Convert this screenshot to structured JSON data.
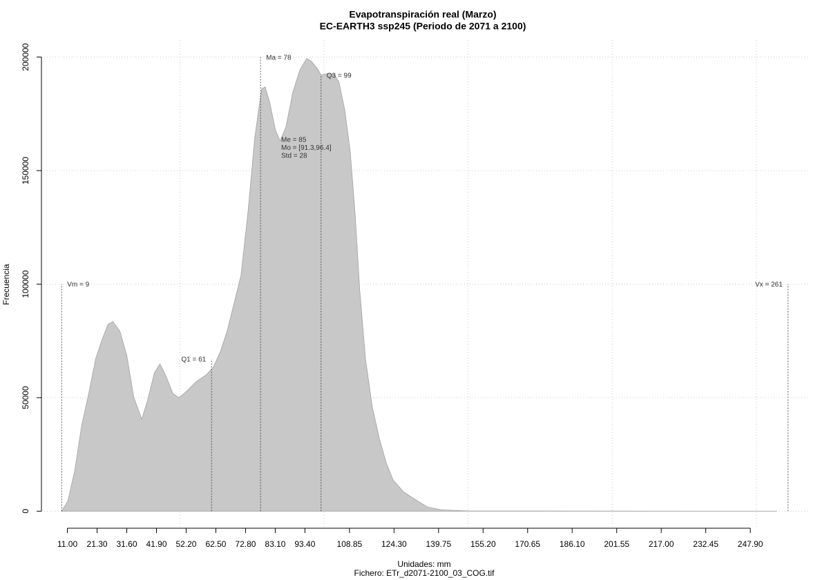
{
  "chart_data": {
    "type": "area",
    "title": "Evapotranspiración real (Marzo)",
    "subtitle": "EC-EARTH3 ssp245 (Periodo de 2071 a 2100)",
    "x_label": "Unidades: mm",
    "file_label": "Fichero: ETr_d2071-2100_03_COG.tif",
    "y_label": "Frecuencia",
    "x": [
      9,
      11.2,
      13.6,
      16.0,
      18.4,
      20.8,
      23.2,
      25.1,
      26.8,
      29.2,
      31.6,
      34.0,
      36.8,
      38.8,
      41.2,
      43.1,
      45.2,
      47.6,
      49.6,
      52.0,
      55.6,
      59.2,
      61.6,
      64.0,
      66.4,
      68.8,
      71.2,
      73.6,
      76.0,
      78.4,
      79.6,
      81.2,
      83.2,
      84.8,
      86.8,
      89.2,
      91.6,
      94.0,
      95.6,
      97.6,
      99.0,
      101.2,
      103.6,
      105.2,
      107.2,
      109.1,
      110.8,
      112.4,
      114.4,
      116.8,
      119.2,
      121.6,
      124.0,
      127.6,
      131.2,
      136.0,
      140.8,
      150.4,
      155.2,
      257
    ],
    "series": [
      {
        "name": "Frecuencia",
        "color": "#c8c8c8",
        "values": [
          0,
          4600,
          18300,
          38100,
          51800,
          67100,
          76200,
          82300,
          83500,
          79300,
          68600,
          50300,
          40500,
          48800,
          61000,
          64900,
          59500,
          51800,
          50000,
          52400,
          57000,
          60100,
          63400,
          70100,
          79300,
          91500,
          103700,
          131100,
          164600,
          186000,
          186900,
          179900,
          167700,
          163100,
          169200,
          184500,
          194200,
          199400,
          198200,
          195100,
          192100,
          192700,
          192400,
          189000,
          176800,
          158600,
          131100,
          97600,
          67100,
          45700,
          32000,
          21300,
          13700,
          8500,
          5500,
          1800,
          600,
          100,
          100,
          0
        ]
      }
    ],
    "xlim": [
      2,
      268
    ],
    "ylim": [
      -7500,
      207500
    ],
    "xticks": [
      {
        "value": 11,
        "label": "11.00"
      },
      {
        "value": 21.3,
        "label": "21.30"
      },
      {
        "value": 31.6,
        "label": "31.60"
      },
      {
        "value": 41.9,
        "label": "41.90"
      },
      {
        "value": 52.2,
        "label": "52.20"
      },
      {
        "value": 62.5,
        "label": "62.50"
      },
      {
        "value": 72.8,
        "label": "72.80"
      },
      {
        "value": 83.1,
        "label": "83.10"
      },
      {
        "value": 93.4,
        "label": "93.40"
      },
      {
        "value": 108.85,
        "label": "108.85"
      },
      {
        "value": 124.3,
        "label": "124.30"
      },
      {
        "value": 139.75,
        "label": "139.75"
      },
      {
        "value": 155.2,
        "label": "155.20"
      },
      {
        "value": 170.65,
        "label": "170.65"
      },
      {
        "value": 186.1,
        "label": "186.10"
      },
      {
        "value": 201.55,
        "label": "201.55"
      },
      {
        "value": 217,
        "label": "217.00"
      },
      {
        "value": 232.45,
        "label": "232.45"
      },
      {
        "value": 247.9,
        "label": "247.90"
      }
    ],
    "yticks": [
      0,
      50000,
      100000,
      150000,
      200000
    ],
    "xgrid": [
      50,
      100,
      150,
      200,
      250
    ],
    "grid": true,
    "markers": [
      {
        "label": "Vm = 9",
        "x": 9,
        "top": 100000
      },
      {
        "label": "Q1 = 61",
        "x": 61,
        "top": 67000
      },
      {
        "label": "Ma = 78",
        "x": 78,
        "top": 200000
      },
      {
        "label": "Q3 = 99",
        "x": 99,
        "top": 192000
      },
      {
        "label": "Vx = 261",
        "x": 261,
        "top": 100000
      }
    ],
    "stats": [
      "Me = 85",
      "Mo = [91.3,96.4]",
      "Std = 28"
    ]
  }
}
